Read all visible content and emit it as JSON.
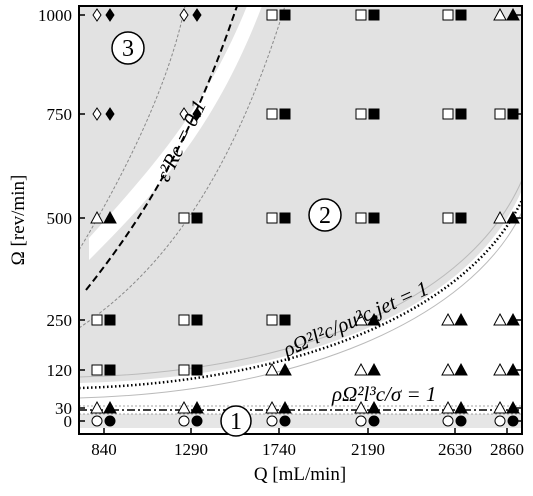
{
  "chart_data": {
    "type": "scatter",
    "title": "",
    "xlabel": "Q [mL/min]",
    "ylabel": "Ω [rev/min]",
    "x_ticks": [
      840,
      1290,
      1740,
      2190,
      2630,
      2860
    ],
    "y_ticks": [
      0,
      30,
      120,
      250,
      500,
      750,
      1000
    ],
    "x_tick_labels": [
      "840",
      "1290",
      "1740",
      "2190",
      "2630",
      "2860"
    ],
    "y_tick_labels": [
      "0",
      "30",
      "120",
      "250",
      "500",
      "750",
      "1000"
    ],
    "grid": false,
    "legend": "none",
    "series": [
      {
        "marker": "circle",
        "points": [
          [
            840,
            0
          ],
          [
            1290,
            0
          ],
          [
            1740,
            0
          ],
          [
            2190,
            0
          ],
          [
            2630,
            0
          ],
          [
            2860,
            0
          ]
        ]
      },
      {
        "marker": "triangle",
        "points": [
          [
            840,
            30
          ],
          [
            1290,
            30
          ],
          [
            1740,
            30
          ],
          [
            2190,
            30
          ],
          [
            2630,
            30
          ],
          [
            2860,
            30
          ],
          [
            1740,
            120
          ],
          [
            2190,
            120
          ],
          [
            2630,
            120
          ],
          [
            2860,
            120
          ],
          [
            2190,
            250
          ],
          [
            2630,
            250
          ],
          [
            2860,
            250
          ],
          [
            840,
            500
          ],
          [
            2860,
            500
          ],
          [
            2860,
            1000
          ]
        ]
      },
      {
        "marker": "square",
        "points": [
          [
            840,
            120
          ],
          [
            840,
            250
          ],
          [
            1290,
            120
          ],
          [
            1290,
            250
          ],
          [
            1290,
            500
          ],
          [
            1740,
            250
          ],
          [
            1740,
            500
          ],
          [
            1740,
            750
          ],
          [
            1740,
            1000
          ],
          [
            2190,
            500
          ],
          [
            2190,
            750
          ],
          [
            2190,
            1000
          ],
          [
            2630,
            500
          ],
          [
            2630,
            750
          ],
          [
            2630,
            1000
          ],
          [
            2860,
            750
          ]
        ]
      },
      {
        "marker": "diamond",
        "points": [
          [
            840,
            750
          ],
          [
            840,
            1000
          ],
          [
            1290,
            750
          ],
          [
            1290,
            1000
          ]
        ]
      }
    ],
    "curves": [
      {
        "label": "ε²Re = 0.1",
        "style": "dashed"
      },
      {
        "label": "ρΩ²l_c²/ρu²_c,jet = 1",
        "style": "dotted"
      },
      {
        "label": "ρΩ²l_c³/σ = 1",
        "style": "dash-dot"
      }
    ],
    "region_labels": [
      "1",
      "2",
      "3"
    ],
    "annotations": {
      "curve1": "ε²Re = 0.1",
      "curve2": "ρΩ²l²c/ρu²c,jet = 1",
      "curve3": "ρΩ²l³c/σ = 1"
    }
  }
}
